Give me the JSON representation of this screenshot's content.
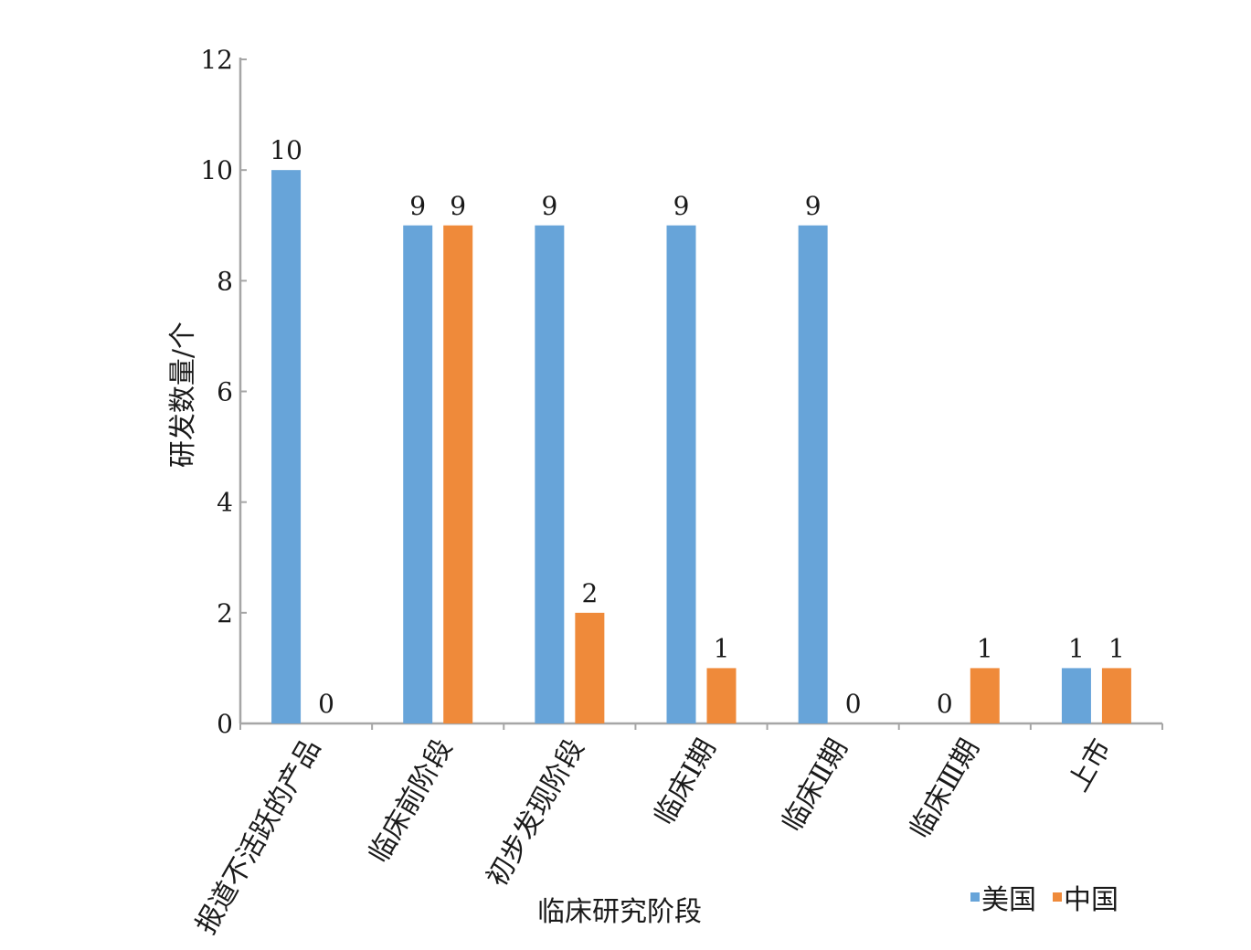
{
  "chart_data": {
    "type": "bar",
    "title": "",
    "xlabel": "临床研究阶段",
    "ylabel": "研发数量/个",
    "ylim": [
      0,
      12
    ],
    "yticks": [
      0,
      2,
      4,
      6,
      8,
      10,
      12
    ],
    "categories": [
      "报道不活跃的产品",
      "临床前阶段",
      "初步发现阶段",
      "临床Ⅰ期",
      "临床Ⅱ期",
      "临床Ⅲ期",
      "上市"
    ],
    "series": [
      {
        "name": "美国",
        "color": "#67a4d9",
        "values": [
          10,
          9,
          9,
          9,
          9,
          0,
          1
        ]
      },
      {
        "name": "中国",
        "color": "#ef8a3a",
        "values": [
          0,
          9,
          2,
          1,
          0,
          1,
          1
        ]
      }
    ],
    "grid": false,
    "legend_position": "bottom-right",
    "axis_color": "#a6a6a6"
  }
}
